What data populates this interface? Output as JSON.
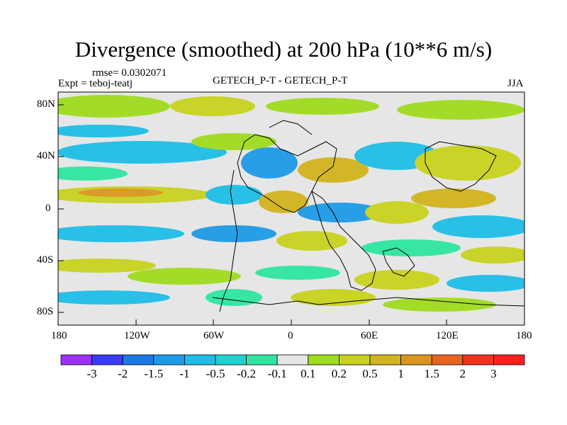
{
  "title": "Divergence (smoothed) at 200 hPa (10**6 m/s)",
  "rmse": "rmse= 0.0302071",
  "expt": "Expt = teboj-teatj",
  "center_label": "GETECH_P-T - GETECH_P-T",
  "season": "JJA",
  "lat_ticks": [
    "80N",
    "40N",
    "0",
    "40S",
    "80S"
  ],
  "lon_ticks": [
    "180",
    "120W",
    "60W",
    "0",
    "60E",
    "120E",
    "180"
  ],
  "colorbar": {
    "colors": [
      "#9b30ff",
      "#3a3aff",
      "#1e78e6",
      "#1e9be6",
      "#1ebee6",
      "#1ed2d2",
      "#2ee6a0",
      "#e6e6e6",
      "#a0dc1e",
      "#c8d21e",
      "#d2b41e",
      "#dc961e",
      "#e6641e",
      "#f0321e",
      "#ff1e1e"
    ],
    "labels": [
      "-3",
      "-2",
      "-1.5",
      "-1",
      "-0.5",
      "-0.2",
      "-0.1",
      "0.1",
      "0.2",
      "0.5",
      "1",
      "1.5",
      "2",
      "3"
    ]
  }
}
